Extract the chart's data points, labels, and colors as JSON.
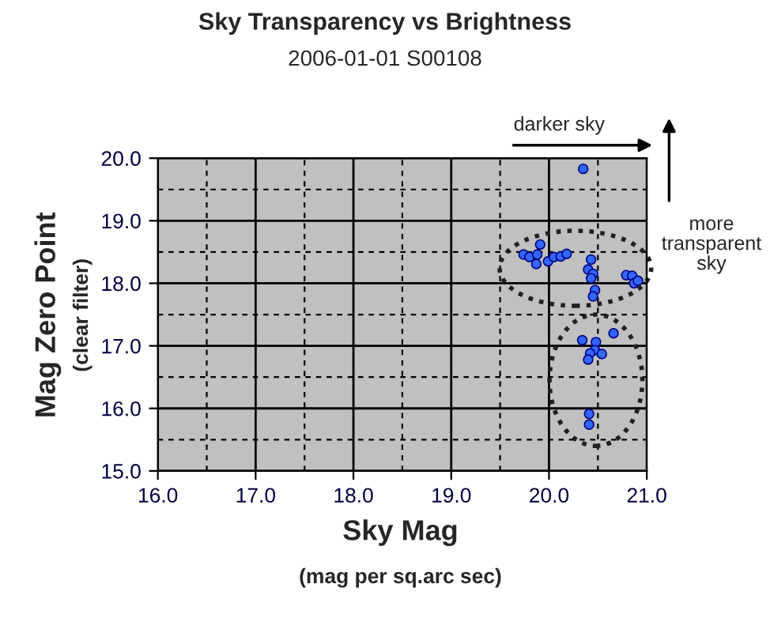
{
  "chart_data": {
    "type": "scatter",
    "title": "Sky Transparency vs Brightness",
    "subtitle": "2006-01-01 S00108",
    "xlabel": "Sky Mag\n(mag per sq.arc sec)",
    "ylabel": "Mag Zero Point\n(clear filter)",
    "annotations": [
      "darker sky",
      "more\ntransparent\nsky"
    ],
    "x": [
      20.35,
      19.91,
      19.74,
      19.8,
      19.88,
      19.87,
      19.99,
      20.05,
      20.12,
      20.18,
      20.43,
      20.4,
      20.45,
      20.43,
      20.47,
      20.45,
      20.79,
      20.85,
      20.87,
      20.91,
      20.66,
      20.34,
      20.48,
      20.47,
      20.42,
      20.54,
      20.4,
      20.41,
      20.41
    ],
    "series": [
      {
        "color": "#3366ff",
        "values": [
          19.83,
          18.62,
          18.46,
          18.42,
          18.46,
          18.31,
          18.35,
          18.42,
          18.43,
          18.47,
          18.38,
          18.22,
          18.15,
          18.08,
          17.89,
          17.79,
          18.13,
          18.12,
          18.0,
          18.04,
          17.2,
          17.09,
          17.06,
          16.93,
          16.88,
          16.87,
          16.78,
          15.91,
          15.74
        ]
      }
    ],
    "xlim": [
      16.0,
      21.0
    ],
    "ylim": [
      15.0,
      20.0
    ],
    "xticks": [
      {
        "value": 16,
        "label": "16.0"
      },
      {
        "value": 17,
        "label": "17.0"
      },
      {
        "value": 18,
        "label": "18.0"
      },
      {
        "value": 19,
        "label": "19.0"
      },
      {
        "value": 20,
        "label": "20.0"
      },
      {
        "value": 21,
        "label": "21.0"
      }
    ],
    "yticks": [
      {
        "value": 15,
        "label": "15.0"
      },
      {
        "value": 16,
        "label": "16.0"
      },
      {
        "value": 17,
        "label": "17.0"
      },
      {
        "value": 18,
        "label": "18.0"
      },
      {
        "value": 19,
        "label": "19.0"
      },
      {
        "value": 20,
        "label": "20.0"
      }
    ],
    "grid": true,
    "marker": "circle",
    "legend": false
  }
}
